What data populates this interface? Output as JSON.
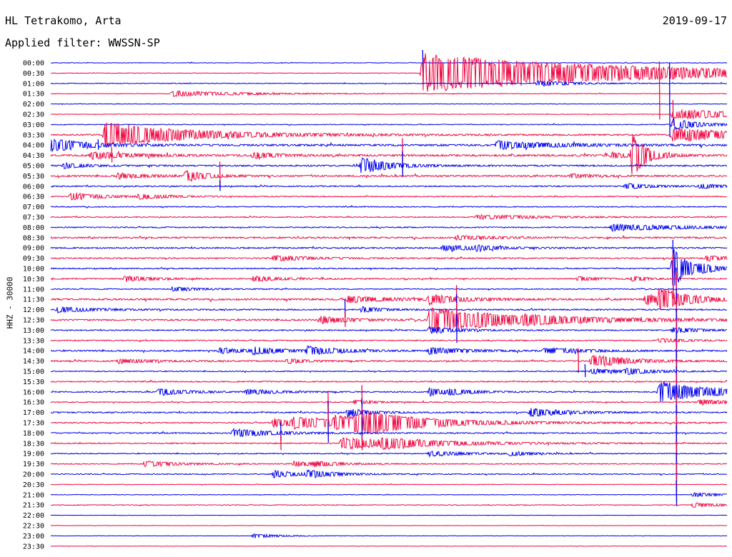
{
  "header": {
    "station": "HL Tetrakomo, Arta",
    "filter": "Applied filter: WWSSN-SP",
    "date": "2019-09-17",
    "channel": "HHZ - 30000"
  },
  "colors": {
    "even_row": "#0000ee",
    "odd_row": "#ee0a44"
  },
  "chart_data": {
    "type": "line",
    "title": "HL Tetrakomo, Arta",
    "ylabel": "HHZ - 30000",
    "row_interval_minutes": 30,
    "grid": false,
    "rows": [
      "00:00",
      "00:30",
      "01:00",
      "01:30",
      "02:00",
      "02:30",
      "03:00",
      "03:30",
      "04:00",
      "04:30",
      "05:00",
      "05:30",
      "06:00",
      "06:30",
      "07:00",
      "07:30",
      "08:00",
      "08:30",
      "09:00",
      "09:30",
      "10:00",
      "10:30",
      "11:00",
      "11:30",
      "12:00",
      "12:30",
      "13:00",
      "13:30",
      "14:00",
      "14:30",
      "15:00",
      "15:30",
      "16:00",
      "16:30",
      "17:00",
      "17:30",
      "18:00",
      "18:30",
      "19:00",
      "19:30",
      "20:00",
      "20:30",
      "21:00",
      "21:30",
      "22:00",
      "22:30",
      "23:00",
      "23:30"
    ],
    "noise_levels": [
      0.3,
      0.3,
      0.4,
      0.3,
      0.3,
      0.3,
      0.4,
      0.8,
      1.0,
      1.0,
      0.8,
      0.8,
      0.6,
      0.5,
      0.5,
      0.5,
      0.6,
      0.8,
      0.7,
      0.7,
      0.6,
      0.6,
      0.5,
      0.9,
      0.7,
      0.8,
      0.6,
      0.6,
      0.7,
      0.7,
      0.5,
      0.6,
      0.6,
      0.5,
      0.7,
      0.6,
      0.6,
      0.6,
      0.5,
      0.5,
      0.5,
      0.3,
      0.3,
      0.4,
      0.2,
      0.2,
      0.2,
      0.2
    ],
    "events": [
      [
        1,
        0.55,
        28,
        0.3
      ],
      [
        2,
        0.72,
        4,
        0.05
      ],
      [
        3,
        0.18,
        4,
        0.1
      ],
      [
        5,
        0.92,
        7,
        0.15
      ],
      [
        6,
        0.92,
        8,
        0.04
      ],
      [
        7,
        0.08,
        18,
        0.12
      ],
      [
        7,
        0.92,
        10,
        0.1
      ],
      [
        8,
        0.0,
        10,
        0.05
      ],
      [
        8,
        0.66,
        6,
        0.08
      ],
      [
        9,
        0.06,
        5,
        0.06
      ],
      [
        9,
        0.3,
        5,
        0.03
      ],
      [
        9,
        0.83,
        4,
        0.03
      ],
      [
        9,
        0.86,
        30,
        0.02
      ],
      [
        10,
        0.46,
        12,
        0.04
      ],
      [
        10,
        0.02,
        4,
        0.03
      ],
      [
        11,
        0.1,
        4,
        0.04
      ],
      [
        11,
        0.2,
        8,
        0.03
      ],
      [
        11,
        0.77,
        3,
        0.03
      ],
      [
        12,
        0.85,
        4,
        0.04
      ],
      [
        12,
        0.96,
        3,
        0.04
      ],
      [
        13,
        0.03,
        5,
        0.05
      ],
      [
        13,
        0.13,
        3,
        0.05
      ],
      [
        15,
        0.63,
        3,
        0.1
      ],
      [
        16,
        0.83,
        5,
        0.1
      ],
      [
        17,
        0.6,
        3,
        0.05
      ],
      [
        18,
        0.58,
        4,
        0.06
      ],
      [
        18,
        0.63,
        3,
        0.02
      ],
      [
        19,
        0.33,
        4,
        0.05
      ],
      [
        19,
        0.97,
        4,
        0.03
      ],
      [
        20,
        0.92,
        5,
        0.03
      ],
      [
        20,
        0.96,
        4,
        0.04
      ],
      [
        20,
        0.92,
        25,
        0.02
      ],
      [
        21,
        0.11,
        4,
        0.04
      ],
      [
        21,
        0.3,
        4,
        0.04
      ],
      [
        21,
        0.78,
        3,
        0.03
      ],
      [
        21,
        0.86,
        4,
        0.02
      ],
      [
        22,
        0.18,
        3,
        0.04
      ],
      [
        23,
        0.44,
        5,
        0.06
      ],
      [
        23,
        0.56,
        6,
        0.05
      ],
      [
        23,
        0.88,
        8,
        0.05
      ],
      [
        23,
        0.9,
        12,
        0.04
      ],
      [
        24,
        0.01,
        4,
        0.05
      ],
      [
        24,
        0.46,
        4,
        0.03
      ],
      [
        25,
        0.4,
        5,
        0.04
      ],
      [
        25,
        0.56,
        18,
        0.06
      ],
      [
        25,
        0.58,
        5,
        0.12
      ],
      [
        25,
        0.63,
        4,
        0.08
      ],
      [
        25,
        0.7,
        4,
        0.15
      ],
      [
        26,
        0.56,
        5,
        0.04
      ],
      [
        26,
        0.92,
        4,
        0.04
      ],
      [
        27,
        0.9,
        3,
        0.04
      ],
      [
        28,
        0.25,
        4,
        0.04
      ],
      [
        28,
        0.3,
        5,
        0.04
      ],
      [
        28,
        0.38,
        6,
        0.05
      ],
      [
        28,
        0.56,
        5,
        0.05
      ],
      [
        28,
        0.73,
        4,
        0.06
      ],
      [
        29,
        0.1,
        3,
        0.05
      ],
      [
        29,
        0.35,
        3,
        0.03
      ],
      [
        29,
        0.8,
        10,
        0.05
      ],
      [
        30,
        0.8,
        4,
        0.04
      ],
      [
        30,
        0.85,
        4,
        0.04
      ],
      [
        32,
        0.16,
        5,
        0.04
      ],
      [
        32,
        0.29,
        4,
        0.04
      ],
      [
        32,
        0.56,
        5,
        0.04
      ],
      [
        32,
        0.59,
        3,
        0.03
      ],
      [
        32,
        0.9,
        15,
        0.08
      ],
      [
        33,
        0.45,
        3,
        0.03
      ],
      [
        33,
        0.96,
        4,
        0.04
      ],
      [
        34,
        0.44,
        6,
        0.03
      ],
      [
        34,
        0.71,
        6,
        0.05
      ],
      [
        35,
        0.33,
        6,
        0.06
      ],
      [
        35,
        0.36,
        6,
        0.1
      ],
      [
        35,
        0.42,
        7,
        0.08
      ],
      [
        35,
        0.45,
        8,
        0.12
      ],
      [
        35,
        0.47,
        6,
        0.06
      ],
      [
        36,
        0.27,
        6,
        0.06
      ],
      [
        37,
        0.43,
        8,
        0.12
      ],
      [
        37,
        0.49,
        5,
        0.06
      ],
      [
        38,
        0.56,
        4,
        0.05
      ],
      [
        38,
        0.68,
        3,
        0.03
      ],
      [
        39,
        0.14,
        4,
        0.05
      ],
      [
        39,
        0.36,
        4,
        0.03
      ],
      [
        39,
        0.39,
        3,
        0.04
      ],
      [
        40,
        0.33,
        5,
        0.04
      ],
      [
        40,
        0.38,
        5,
        0.04
      ],
      [
        42,
        0.95,
        3,
        0.04
      ],
      [
        43,
        0.95,
        3,
        0.04
      ],
      [
        46,
        0.3,
        3,
        0.04
      ]
    ],
    "spikes": [
      [
        0,
        0.55,
        18
      ],
      [
        1,
        0.555,
        12
      ],
      [
        3,
        0.9,
        45
      ],
      [
        4,
        0.915,
        58
      ],
      [
        5,
        0.92,
        20
      ],
      [
        7,
        0.08,
        14
      ],
      [
        8,
        0.07,
        8
      ],
      [
        9,
        0.09,
        12
      ],
      [
        9,
        0.52,
        24
      ],
      [
        10,
        0.52,
        20
      ],
      [
        11,
        0.25,
        20
      ],
      [
        12,
        0.25,
        8
      ],
      [
        20,
        0.92,
        40
      ],
      [
        21,
        0.92,
        35
      ],
      [
        22,
        0.925,
        30
      ],
      [
        23,
        0.925,
        40
      ],
      [
        24,
        0.925,
        30
      ],
      [
        25,
        0.925,
        30
      ],
      [
        26,
        0.925,
        30
      ],
      [
        27,
        0.925,
        30
      ],
      [
        28,
        0.925,
        30
      ],
      [
        29,
        0.925,
        30
      ],
      [
        30,
        0.925,
        30
      ],
      [
        31,
        0.925,
        30
      ],
      [
        32,
        0.925,
        35
      ],
      [
        33,
        0.925,
        40
      ],
      [
        34,
        0.925,
        40
      ],
      [
        35,
        0.925,
        40
      ],
      [
        36,
        0.925,
        40
      ],
      [
        37,
        0.925,
        40
      ],
      [
        38,
        0.925,
        40
      ],
      [
        39,
        0.925,
        30
      ],
      [
        40,
        0.925,
        30
      ],
      [
        41,
        0.925,
        30
      ],
      [
        42,
        0.925,
        20
      ],
      [
        23,
        0.6,
        20
      ],
      [
        24,
        0.6,
        22
      ],
      [
        25,
        0.6,
        24
      ],
      [
        26,
        0.6,
        22
      ],
      [
        24,
        0.435,
        14
      ],
      [
        25,
        0.435,
        12
      ],
      [
        29,
        0.78,
        18
      ],
      [
        30,
        0.79,
        10
      ],
      [
        33,
        0.46,
        24
      ],
      [
        34,
        0.46,
        20
      ],
      [
        35,
        0.46,
        22
      ],
      [
        36,
        0.46,
        22
      ],
      [
        37,
        0.46,
        12
      ],
      [
        33,
        0.41,
        16
      ],
      [
        34,
        0.41,
        16
      ],
      [
        35,
        0.41,
        24
      ],
      [
        36,
        0.41,
        16
      ],
      [
        36,
        0.34,
        14
      ],
      [
        37,
        0.34,
        12
      ]
    ]
  }
}
